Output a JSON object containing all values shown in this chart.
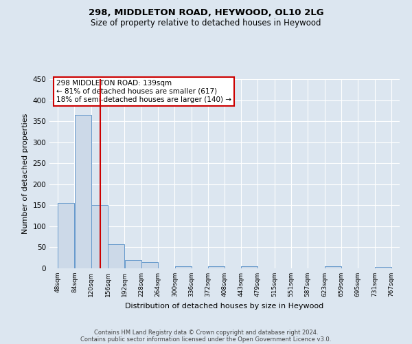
{
  "title": "298, MIDDLETON ROAD, HEYWOOD, OL10 2LG",
  "subtitle": "Size of property relative to detached houses in Heywood",
  "xlabel": "Distribution of detached houses by size in Heywood",
  "ylabel": "Number of detached properties",
  "bin_edges": [
    48,
    84,
    120,
    156,
    192,
    228,
    264,
    300,
    336,
    372,
    408,
    443,
    479,
    515,
    551,
    587,
    623,
    659,
    695,
    731,
    767
  ],
  "bar_heights": [
    155,
    365,
    150,
    58,
    20,
    14,
    0,
    5,
    0,
    5,
    0,
    5,
    0,
    0,
    0,
    0,
    5,
    0,
    0,
    3
  ],
  "bar_color": "#ccd9e8",
  "bar_edgecolor": "#6699cc",
  "vline_x": 139,
  "vline_color": "#cc0000",
  "ylim": [
    0,
    450
  ],
  "yticks": [
    0,
    50,
    100,
    150,
    200,
    250,
    300,
    350,
    400,
    450
  ],
  "annotation_title": "298 MIDDLETON ROAD: 139sqm",
  "annotation_line1": "← 81% of detached houses are smaller (617)",
  "annotation_line2": "18% of semi-detached houses are larger (140) →",
  "footer_line1": "Contains HM Land Registry data © Crown copyright and database right 2024.",
  "footer_line2": "Contains public sector information licensed under the Open Government Licence v3.0.",
  "tick_labels": [
    "48sqm",
    "84sqm",
    "120sqm",
    "156sqm",
    "192sqm",
    "228sqm",
    "264sqm",
    "300sqm",
    "336sqm",
    "372sqm",
    "408sqm",
    "443sqm",
    "479sqm",
    "515sqm",
    "551sqm",
    "587sqm",
    "623sqm",
    "659sqm",
    "695sqm",
    "731sqm",
    "767sqm"
  ],
  "background_color": "#dce6f0",
  "plot_background": "#dce6f0",
  "grid_color": "#ffffff"
}
